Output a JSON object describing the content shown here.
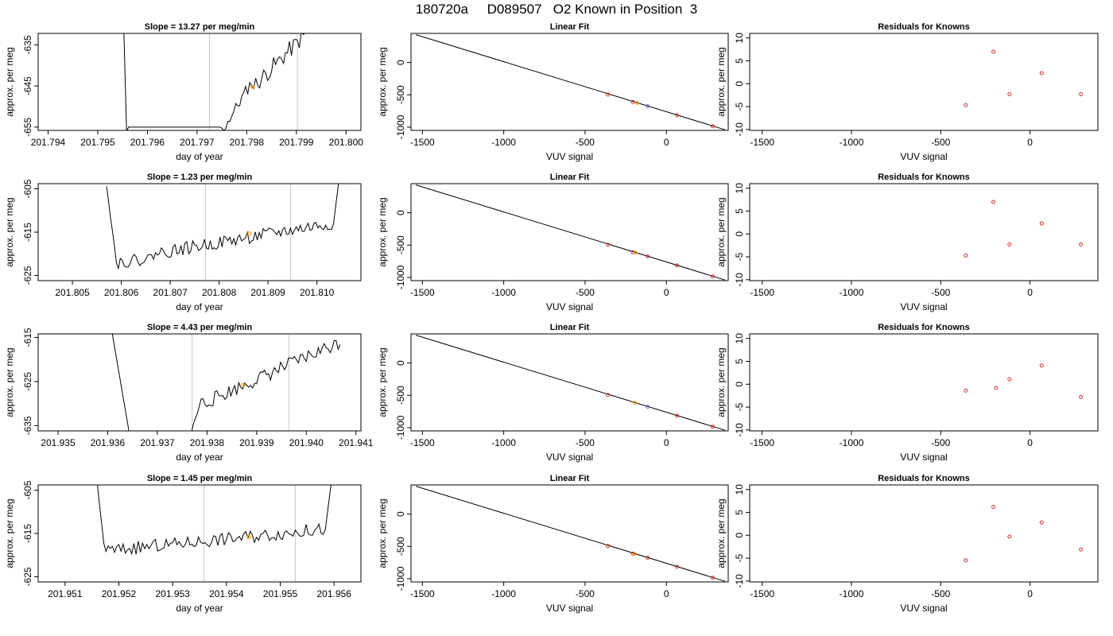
{
  "page_title": "180720a     D089507   O2 Known in Position  3",
  "colors": {
    "line": "#000000",
    "axis": "#000000",
    "marker_mid": "#ffa500",
    "marker_fit": "#d03030",
    "marker_fit_blue": "#6a6ad0",
    "vline": "#c8c8c8"
  },
  "chart_data": [
    {
      "type": "line",
      "panel": "time",
      "title": "Slope =  13.27  per meg/min",
      "xlabel": "day of year",
      "ylabel": "approx. per meg",
      "xlim": [
        201.7938,
        201.8003
      ],
      "ylim": [
        -655.8,
        -632.2
      ],
      "xticks": [
        201.794,
        201.795,
        201.796,
        201.797,
        201.798,
        201.799,
        201.8
      ],
      "yticks": [
        -635,
        -645,
        -655
      ],
      "vlines": [
        201.79725,
        201.79902
      ],
      "highlight": {
        "x": 201.79812,
        "y": -645.2
      },
      "trace": {
        "x0": 201.7955,
        "dx": 4e-05,
        "segments": [
          {
            "n": 3,
            "from": -620,
            "to": -656,
            "noise": 0
          },
          {
            "n": 47,
            "from": -655,
            "to": -655,
            "noise": 0
          },
          {
            "n": 16,
            "from": -656,
            "to": -644,
            "noise": 1.5
          },
          {
            "n": 30,
            "from": -645,
            "to": -631,
            "noise": 2.2
          }
        ],
        "seed": 11
      }
    },
    {
      "type": "line",
      "panel": "fit",
      "title": "Linear Fit",
      "xlabel": "VUV signal",
      "ylabel": "approx. per meg",
      "xlim": [
        -1570,
        380
      ],
      "ylim": [
        -1050,
        450
      ],
      "xticks": [
        -1500,
        -1000,
        -500,
        0
      ],
      "yticks": [
        0,
        -500,
        -1000
      ],
      "line": {
        "x": [
          -1540,
          360
        ],
        "y": [
          430,
          -1040
        ]
      },
      "points": [
        [
          -360,
          -495,
          "r"
        ],
        [
          -205,
          -612,
          "r"
        ],
        [
          -180,
          -625,
          "o"
        ],
        [
          -115,
          -675,
          "b"
        ],
        [
          65,
          -815,
          "r"
        ],
        [
          285,
          -985,
          "r"
        ]
      ]
    },
    {
      "type": "scatter",
      "panel": "resid",
      "title": "Residuals for Knowns",
      "xlabel": "VUV signal",
      "ylabel": "approx. per meg",
      "xlim": [
        -1570,
        380
      ],
      "ylim": [
        -10.2,
        11
      ],
      "xticks": [
        -1500,
        -1000,
        -500,
        0
      ],
      "yticks": [
        10,
        5,
        0,
        -5,
        -10
      ],
      "points": [
        [
          -360,
          -4.7
        ],
        [
          -205,
          7.0
        ],
        [
          -115,
          -2.3
        ],
        [
          65,
          2.3
        ],
        [
          285,
          -2.3
        ]
      ]
    },
    {
      "type": "line",
      "panel": "time",
      "title": "Slope =  1.23  per meg/min",
      "xlabel": "day of year",
      "ylabel": "approx. per meg",
      "xlim": [
        201.8043,
        201.8109
      ],
      "ylim": [
        -626.2,
        -603.8
      ],
      "xticks": [
        201.805,
        201.806,
        201.807,
        201.808,
        201.809,
        201.81
      ],
      "yticks": [
        -605,
        -615,
        -625
      ],
      "vlines": [
        201.80772,
        201.80946
      ],
      "highlight": {
        "x": 201.80862,
        "y": -615.3
      },
      "trace": {
        "x0": 201.8057,
        "dx": 4e-05,
        "segments": [
          {
            "n": 6,
            "from": -604,
            "to": -622,
            "noise": 0.5
          },
          {
            "n": 18,
            "from": -622,
            "to": -621,
            "noise": 1.4
          },
          {
            "n": 92,
            "from": -620,
            "to": -613,
            "noise": 1.5
          },
          {
            "n": 4,
            "from": -613,
            "to": -602,
            "noise": 0
          }
        ],
        "seed": 22
      }
    },
    {
      "type": "line",
      "panel": "fit",
      "title": "Linear Fit",
      "xlabel": "VUV signal",
      "ylabel": "approx. per meg",
      "xlim": [
        -1570,
        380
      ],
      "ylim": [
        -1050,
        450
      ],
      "xticks": [
        -1500,
        -1000,
        -500,
        0
      ],
      "yticks": [
        0,
        -500,
        -1000
      ],
      "line": {
        "x": [
          -1540,
          360
        ],
        "y": [
          430,
          -1040
        ]
      },
      "points": [
        [
          -360,
          -495,
          "r"
        ],
        [
          -205,
          -612,
          "r"
        ],
        [
          -190,
          -618,
          "o"
        ],
        [
          -115,
          -675,
          "r"
        ],
        [
          65,
          -815,
          "r"
        ],
        [
          285,
          -985,
          "r"
        ]
      ]
    },
    {
      "type": "scatter",
      "panel": "resid",
      "title": "Residuals for Knowns",
      "xlabel": "VUV signal",
      "ylabel": "approx. per meg",
      "xlim": [
        -1570,
        380
      ],
      "ylim": [
        -10.2,
        11
      ],
      "xticks": [
        -1500,
        -1000,
        -500,
        0
      ],
      "yticks": [
        10,
        5,
        0,
        -5,
        -10
      ],
      "points": [
        [
          -360,
          -4.7
        ],
        [
          -205,
          7.0
        ],
        [
          -115,
          -2.3
        ],
        [
          65,
          2.3
        ],
        [
          285,
          -2.3
        ]
      ]
    },
    {
      "type": "line",
      "panel": "time",
      "title": "Slope =  4.43  per meg/min",
      "xlabel": "day of year",
      "ylabel": "approx. per meg",
      "xlim": [
        201.9346,
        201.9411
      ],
      "ylim": [
        -636.2,
        -614.2
      ],
      "xticks": [
        201.935,
        201.936,
        201.937,
        201.938,
        201.939,
        201.94,
        201.941
      ],
      "yticks": [
        -615,
        -625,
        -635
      ],
      "vlines": [
        201.9377,
        201.93965
      ],
      "highlight": {
        "x": 201.93873,
        "y": -625.8
      },
      "trace": {
        "x0": 201.936,
        "dx": 4e-05,
        "segments": [
          {
            "n": 12,
            "from": -608,
            "to": -637,
            "noise": 0
          },
          {
            "n": 30,
            "from": -637,
            "to": -637,
            "noise": 0
          },
          {
            "n": 6,
            "from": -637,
            "to": -629,
            "noise": 1.0
          },
          {
            "n": 70,
            "from": -630,
            "to": -616,
            "noise": 1.6
          }
        ],
        "seed": 33
      }
    },
    {
      "type": "line",
      "panel": "fit",
      "title": "Linear Fit",
      "xlabel": "VUV signal",
      "ylabel": "approx. per meg",
      "xlim": [
        -1570,
        380
      ],
      "ylim": [
        -1050,
        450
      ],
      "xticks": [
        -1500,
        -1000,
        -500,
        0
      ],
      "yticks": [
        0,
        -500,
        -1000
      ],
      "line": {
        "x": [
          -1540,
          360
        ],
        "y": [
          430,
          -1040
        ]
      },
      "points": [
        [
          -360,
          -495,
          "r"
        ],
        [
          -195,
          -615,
          "o"
        ],
        [
          -115,
          -675,
          "b"
        ],
        [
          65,
          -815,
          "r"
        ],
        [
          285,
          -985,
          "r"
        ]
      ]
    },
    {
      "type": "scatter",
      "panel": "resid",
      "title": "Residuals for Knowns",
      "xlabel": "VUV signal",
      "ylabel": "approx. per meg",
      "xlim": [
        -1570,
        380
      ],
      "ylim": [
        -10.2,
        11
      ],
      "xticks": [
        -1500,
        -1000,
        -500,
        0
      ],
      "yticks": [
        10,
        5,
        0,
        -5,
        -10
      ],
      "points": [
        [
          -360,
          -1.4
        ],
        [
          -190,
          -0.8
        ],
        [
          -115,
          1.1
        ],
        [
          65,
          4.1
        ],
        [
          285,
          -2.8
        ]
      ]
    },
    {
      "type": "line",
      "panel": "time",
      "title": "Slope =  1.45  per meg/min",
      "xlabel": "day of year",
      "ylabel": "approx. per meg",
      "xlim": [
        201.9505,
        201.9565
      ],
      "ylim": [
        -626.2,
        -603.8
      ],
      "xticks": [
        201.951,
        201.952,
        201.953,
        201.954,
        201.955,
        201.956
      ],
      "yticks": [
        -605,
        -615,
        -625
      ],
      "vlines": [
        201.95358,
        201.95528
      ],
      "highlight": {
        "x": 201.95442,
        "y": -615.8
      },
      "trace": {
        "x0": 201.9516,
        "dx": 4e-05,
        "segments": [
          {
            "n": 4,
            "from": -604,
            "to": -617,
            "noise": 0.5
          },
          {
            "n": 102,
            "from": -619,
            "to": -614,
            "noise": 1.5
          },
          {
            "n": 4,
            "from": -614,
            "to": -602,
            "noise": 0
          }
        ],
        "seed": 44
      }
    },
    {
      "type": "line",
      "panel": "fit",
      "title": "Linear Fit",
      "xlabel": "VUV signal",
      "ylabel": "approx. per meg",
      "xlim": [
        -1570,
        380
      ],
      "ylim": [
        -1050,
        450
      ],
      "xticks": [
        -1500,
        -1000,
        -500,
        0
      ],
      "yticks": [
        0,
        -500,
        -1000
      ],
      "line": {
        "x": [
          -1540,
          360
        ],
        "y": [
          430,
          -1040
        ]
      },
      "points": [
        [
          -360,
          -495,
          "r"
        ],
        [
          -205,
          -612,
          "r"
        ],
        [
          -195,
          -620,
          "o"
        ],
        [
          -115,
          -675,
          "r"
        ],
        [
          65,
          -815,
          "r"
        ],
        [
          285,
          -985,
          "r"
        ]
      ]
    },
    {
      "type": "scatter",
      "panel": "resid",
      "title": "Residuals for Knowns",
      "xlabel": "VUV signal",
      "ylabel": "approx. per meg",
      "xlim": [
        -1570,
        380
      ],
      "ylim": [
        -10.2,
        11
      ],
      "xticks": [
        -1500,
        -1000,
        -500,
        0
      ],
      "yticks": [
        10,
        5,
        0,
        -5,
        -10
      ],
      "points": [
        [
          -360,
          -5.5
        ],
        [
          -205,
          6.2
        ],
        [
          -115,
          -0.3
        ],
        [
          65,
          2.8
        ],
        [
          285,
          -3.1
        ]
      ]
    }
  ]
}
